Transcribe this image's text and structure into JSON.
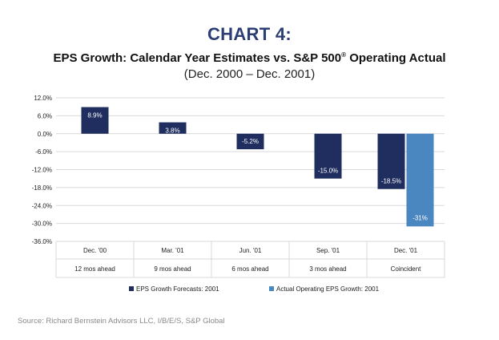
{
  "header": {
    "heading": "CHART 4:",
    "title_main": "EPS Growth: Calendar Year Estimates vs. S&P 500",
    "title_sup": "®",
    "title_end": " Operating Actual",
    "subtitle": "(Dec. 2000 – Dec. 2001)"
  },
  "chart_data": {
    "type": "bar",
    "categories": [
      "Dec. '00",
      "Mar. '01",
      "Jun. '01",
      "Sep. '01",
      "Dec. '01"
    ],
    "category_sublabels": [
      "12 mos ahead",
      "9 mos ahead",
      "6 mos ahead",
      "3 mos ahead",
      "Coincident"
    ],
    "series": [
      {
        "name": "EPS Growth Forecasts: 2001",
        "color": "#1f2e5e",
        "values": [
          8.9,
          3.8,
          -5.2,
          -15.0,
          -18.5
        ],
        "labels": [
          "8.9%",
          "3.8%",
          "-5.2%",
          "-15.0%",
          "-18.5%"
        ]
      },
      {
        "name": "Actual Operating EPS Growth: 2001",
        "color": "#4a86c0",
        "values": [
          null,
          null,
          null,
          null,
          -31
        ],
        "labels": [
          "",
          "",
          "",
          "",
          "-31%"
        ]
      }
    ],
    "yticks": [
      "12.0%",
      "6.0%",
      "0.0%",
      "-6.0%",
      "-12.0%",
      "-18.0%",
      "-24.0%",
      "-30.0%",
      "-36.0%"
    ],
    "ylim": [
      -36,
      12
    ],
    "grid": true,
    "legend_position": "bottom"
  },
  "footer": {
    "source": "Source: Richard Bernstein Advisors LLC, I/B/E/S, S&P Global"
  }
}
